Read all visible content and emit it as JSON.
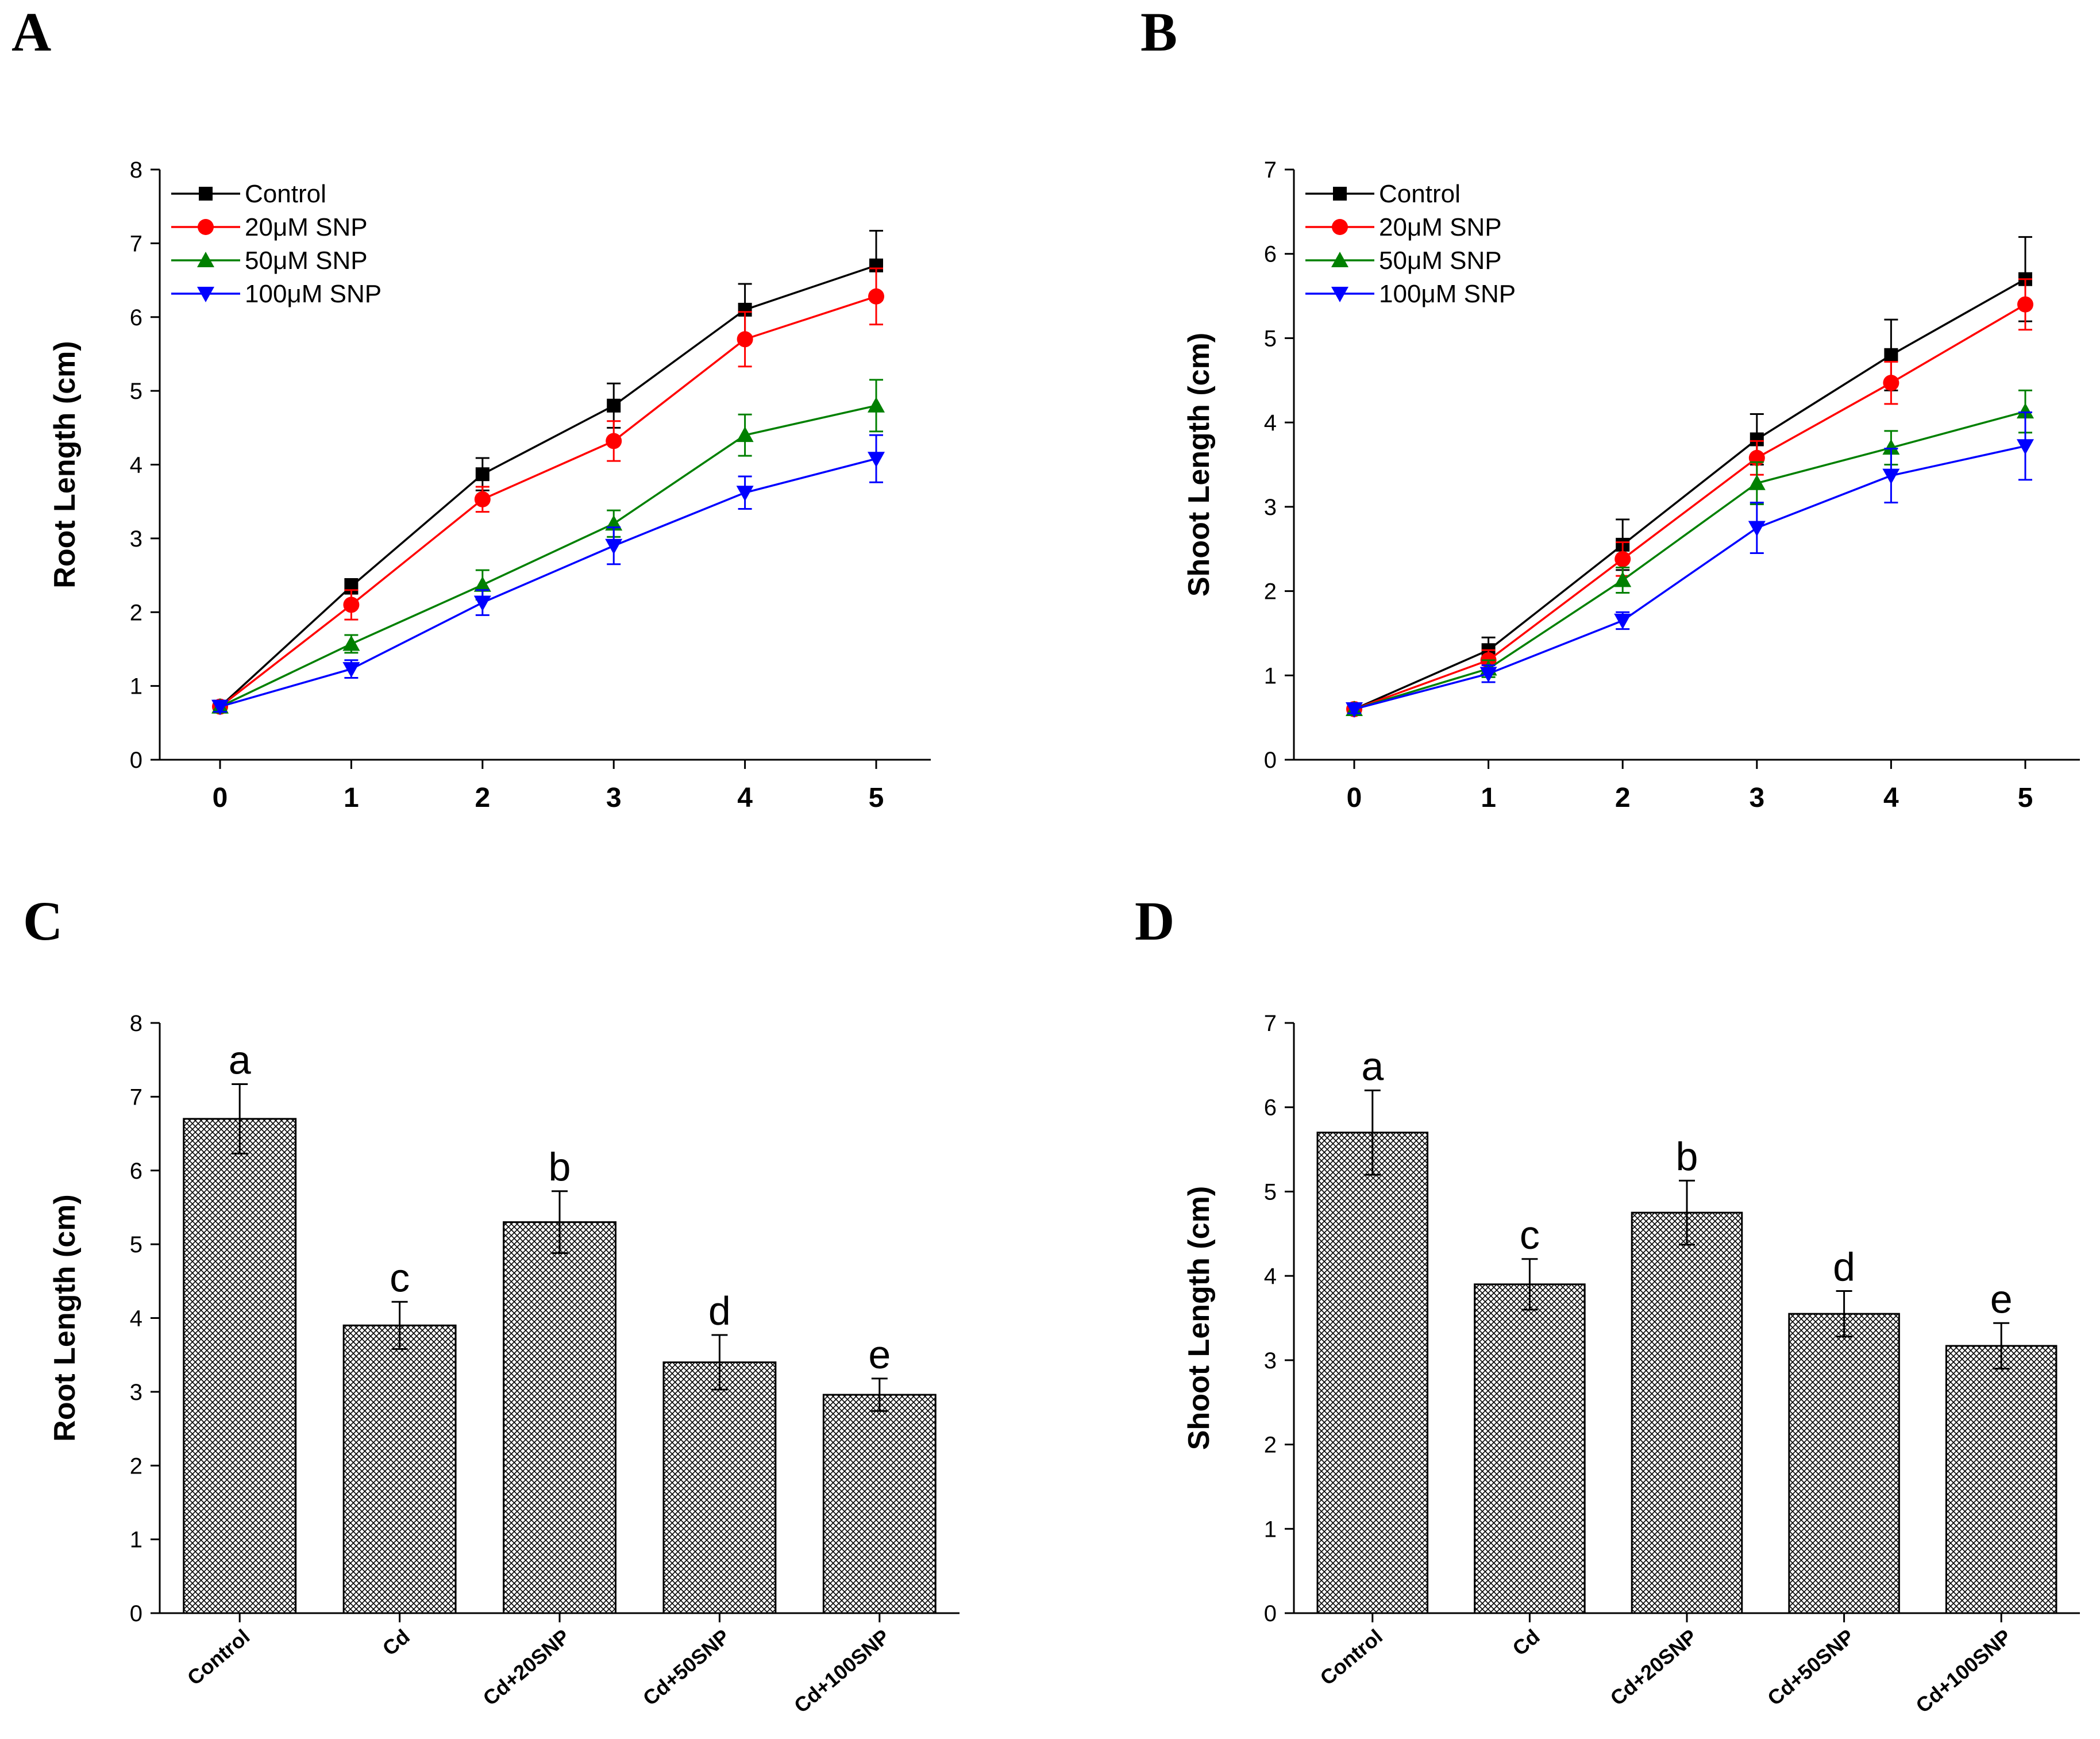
{
  "figure": {
    "colors": {
      "control": "#000000",
      "snp20": "#ff0000",
      "snp50": "#008000",
      "snp100": "#0000ff"
    }
  },
  "chart_data": [
    {
      "panel": "A",
      "type": "line",
      "ylabel": "Root Length (cm)",
      "xlabel": "",
      "x": [
        0,
        1,
        2,
        3,
        4,
        5
      ],
      "xticks": [
        "0",
        "1",
        "2",
        "3",
        "4",
        "5"
      ],
      "ylim": [
        0,
        8
      ],
      "yticks": [
        "0",
        "1",
        "2",
        "3",
        "4",
        "5",
        "6",
        "7",
        "8"
      ],
      "legend_position": "top-left",
      "series": [
        {
          "name": "Control",
          "color": "#000000",
          "marker": "square",
          "values": [
            0.72,
            2.35,
            3.87,
            4.8,
            6.1,
            6.7
          ],
          "errors": [
            0.05,
            0.1,
            0.22,
            0.3,
            0.35,
            0.47
          ]
        },
        {
          "name": "20μM SNP",
          "color": "#ff0000",
          "marker": "circle",
          "values": [
            0.72,
            2.1,
            3.53,
            4.32,
            5.7,
            6.28
          ],
          "errors": [
            0.05,
            0.2,
            0.17,
            0.27,
            0.37,
            0.38
          ]
        },
        {
          "name": "50μM SNP",
          "color": "#008000",
          "marker": "triangle-up",
          "values": [
            0.72,
            1.57,
            2.37,
            3.2,
            4.4,
            4.8
          ],
          "errors": [
            0.05,
            0.12,
            0.2,
            0.18,
            0.28,
            0.35
          ]
        },
        {
          "name": "100μM SNP",
          "color": "#0000ff",
          "marker": "triangle-down",
          "values": [
            0.72,
            1.23,
            2.13,
            2.9,
            3.62,
            4.08
          ],
          "errors": [
            0.07,
            0.12,
            0.17,
            0.25,
            0.22,
            0.32
          ]
        }
      ]
    },
    {
      "panel": "B",
      "type": "line",
      "ylabel": "Shoot Length (cm)",
      "xlabel": "",
      "x": [
        0,
        1,
        2,
        3,
        4,
        5
      ],
      "xticks": [
        "0",
        "1",
        "2",
        "3",
        "4",
        "5"
      ],
      "ylim": [
        0,
        7
      ],
      "yticks": [
        "0",
        "1",
        "2",
        "3",
        "4",
        "5",
        "6",
        "7"
      ],
      "legend_position": "top-left",
      "series": [
        {
          "name": "Control",
          "color": "#000000",
          "marker": "square",
          "values": [
            0.6,
            1.3,
            2.55,
            3.8,
            4.8,
            5.7
          ],
          "errors": [
            0.05,
            0.15,
            0.3,
            0.3,
            0.42,
            0.5
          ]
        },
        {
          "name": "20μM SNP",
          "color": "#ff0000",
          "marker": "circle",
          "values": [
            0.6,
            1.18,
            2.38,
            3.58,
            4.47,
            5.4
          ],
          "errors": [
            0.05,
            0.12,
            0.2,
            0.2,
            0.25,
            0.3
          ]
        },
        {
          "name": "50μM SNP",
          "color": "#008000",
          "marker": "triangle-up",
          "values": [
            0.6,
            1.08,
            2.13,
            3.28,
            3.7,
            4.13
          ],
          "errors": [
            0.05,
            0.1,
            0.15,
            0.25,
            0.2,
            0.25
          ]
        },
        {
          "name": "100μM SNP",
          "color": "#0000ff",
          "marker": "triangle-down",
          "values": [
            0.6,
            1.02,
            1.65,
            2.75,
            3.37,
            3.72
          ],
          "errors": [
            0.05,
            0.1,
            0.1,
            0.3,
            0.32,
            0.4
          ]
        }
      ]
    },
    {
      "panel": "C",
      "type": "bar",
      "ylabel": "Root Length (cm)",
      "xlabel": "",
      "categories": [
        "Control",
        "Cd",
        "Cd+20SNP",
        "Cd+50SNP",
        "Cd+100SNP"
      ],
      "values": [
        6.7,
        3.9,
        5.3,
        3.4,
        2.96
      ],
      "errors": [
        0.47,
        0.32,
        0.42,
        0.37,
        0.22
      ],
      "significance": [
        "a",
        "c",
        "b",
        "d",
        "e"
      ],
      "ylim": [
        0,
        8
      ],
      "yticks": [
        "0",
        "1",
        "2",
        "3",
        "4",
        "5",
        "6",
        "7",
        "8"
      ]
    },
    {
      "panel": "D",
      "type": "bar",
      "ylabel": "Shoot Length (cm)",
      "xlabel": "",
      "categories": [
        "Control",
        "Cd",
        "Cd+20SNP",
        "Cd+50SNP",
        "Cd+100SNP"
      ],
      "values": [
        5.7,
        3.9,
        4.75,
        3.55,
        3.17
      ],
      "errors": [
        0.5,
        0.3,
        0.38,
        0.27,
        0.27
      ],
      "significance": [
        "a",
        "c",
        "b",
        "d",
        "e"
      ],
      "ylim": [
        0,
        7
      ],
      "yticks": [
        "0",
        "1",
        "2",
        "3",
        "4",
        "5",
        "6",
        "7"
      ]
    }
  ]
}
